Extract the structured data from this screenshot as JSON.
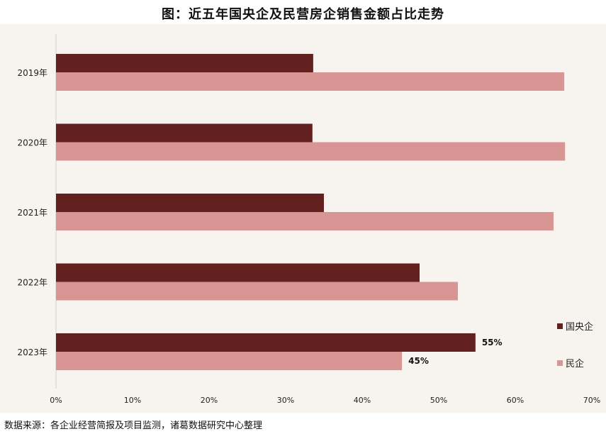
{
  "title": "图：近五年国央企及民营房企销售金额占比走势",
  "source": "数据来源：各企业经营简报及项目监测，诸葛数据研究中心整理",
  "chart_data": {
    "type": "bar",
    "orientation": "horizontal",
    "title": "图：近五年国央企及民营房企销售金额占比走势",
    "categories": [
      "2019年",
      "2020年",
      "2021年",
      "2022年",
      "2023年"
    ],
    "series": [
      {
        "name": "国央企",
        "color": "#62201f",
        "values": [
          33.6,
          33.5,
          35.0,
          47.5,
          54.8
        ]
      },
      {
        "name": "民企",
        "color": "#d99594",
        "values": [
          66.4,
          66.5,
          65.0,
          52.5,
          45.2
        ]
      }
    ],
    "data_labels": [
      {
        "category": "2023年",
        "series": "国央企",
        "text": "55%"
      },
      {
        "category": "2023年",
        "series": "民企",
        "text": "45%"
      }
    ],
    "xlim": [
      0,
      70
    ],
    "xticks": [
      "0%",
      "10%",
      "20%",
      "30%",
      "40%",
      "50%",
      "60%",
      "70%"
    ],
    "xlabel": "",
    "ylabel": "",
    "grid": false,
    "legend_position": "right"
  }
}
